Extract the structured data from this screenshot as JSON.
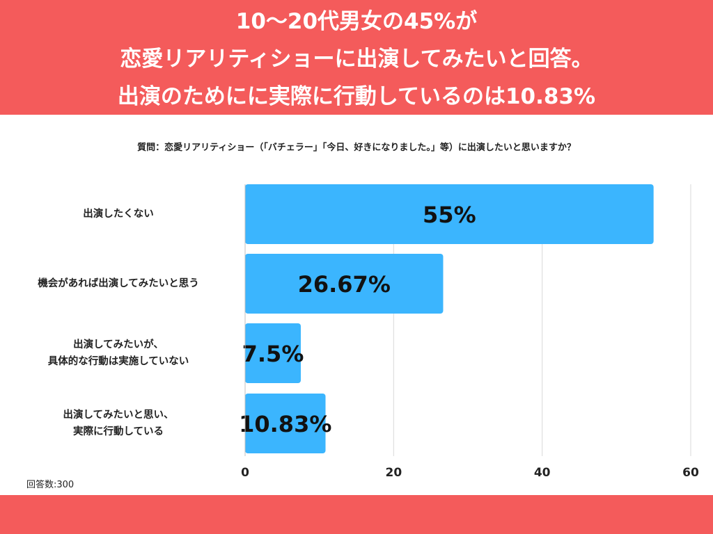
{
  "header": {
    "title_lines": [
      "10〜20代男女の45%が",
      "恋愛リアリティショーに出演してみたいと回答。",
      "出演のためにに実際に行動しているのは10.83%"
    ]
  },
  "question": "質問：恋愛リアリティショー（「バチェラー」「今日、好きになりました。」等）に出演したいと思いますか？",
  "respondents": "回答数:300",
  "colors": {
    "header": "#f45b5b",
    "bar": "#3bb5fe",
    "grid": "#d9d9d9",
    "text": "#222222"
  },
  "chart_data": {
    "type": "bar",
    "orientation": "horizontal",
    "categories": [
      [
        "出演したくない"
      ],
      [
        "機会があれば出演してみたいと思う"
      ],
      [
        "出演してみたいが、",
        "具体的な行動は実施していない"
      ],
      [
        "出演してみたいと思い、",
        "実際に行動している"
      ]
    ],
    "values": [
      55,
      26.67,
      7.5,
      10.83
    ],
    "value_labels": [
      "55%",
      "26.67%",
      "7.5%",
      "10.83%"
    ],
    "xlim": [
      0,
      60
    ],
    "xticks": [
      0,
      20,
      40,
      60
    ],
    "grid": true,
    "legend": "none"
  }
}
